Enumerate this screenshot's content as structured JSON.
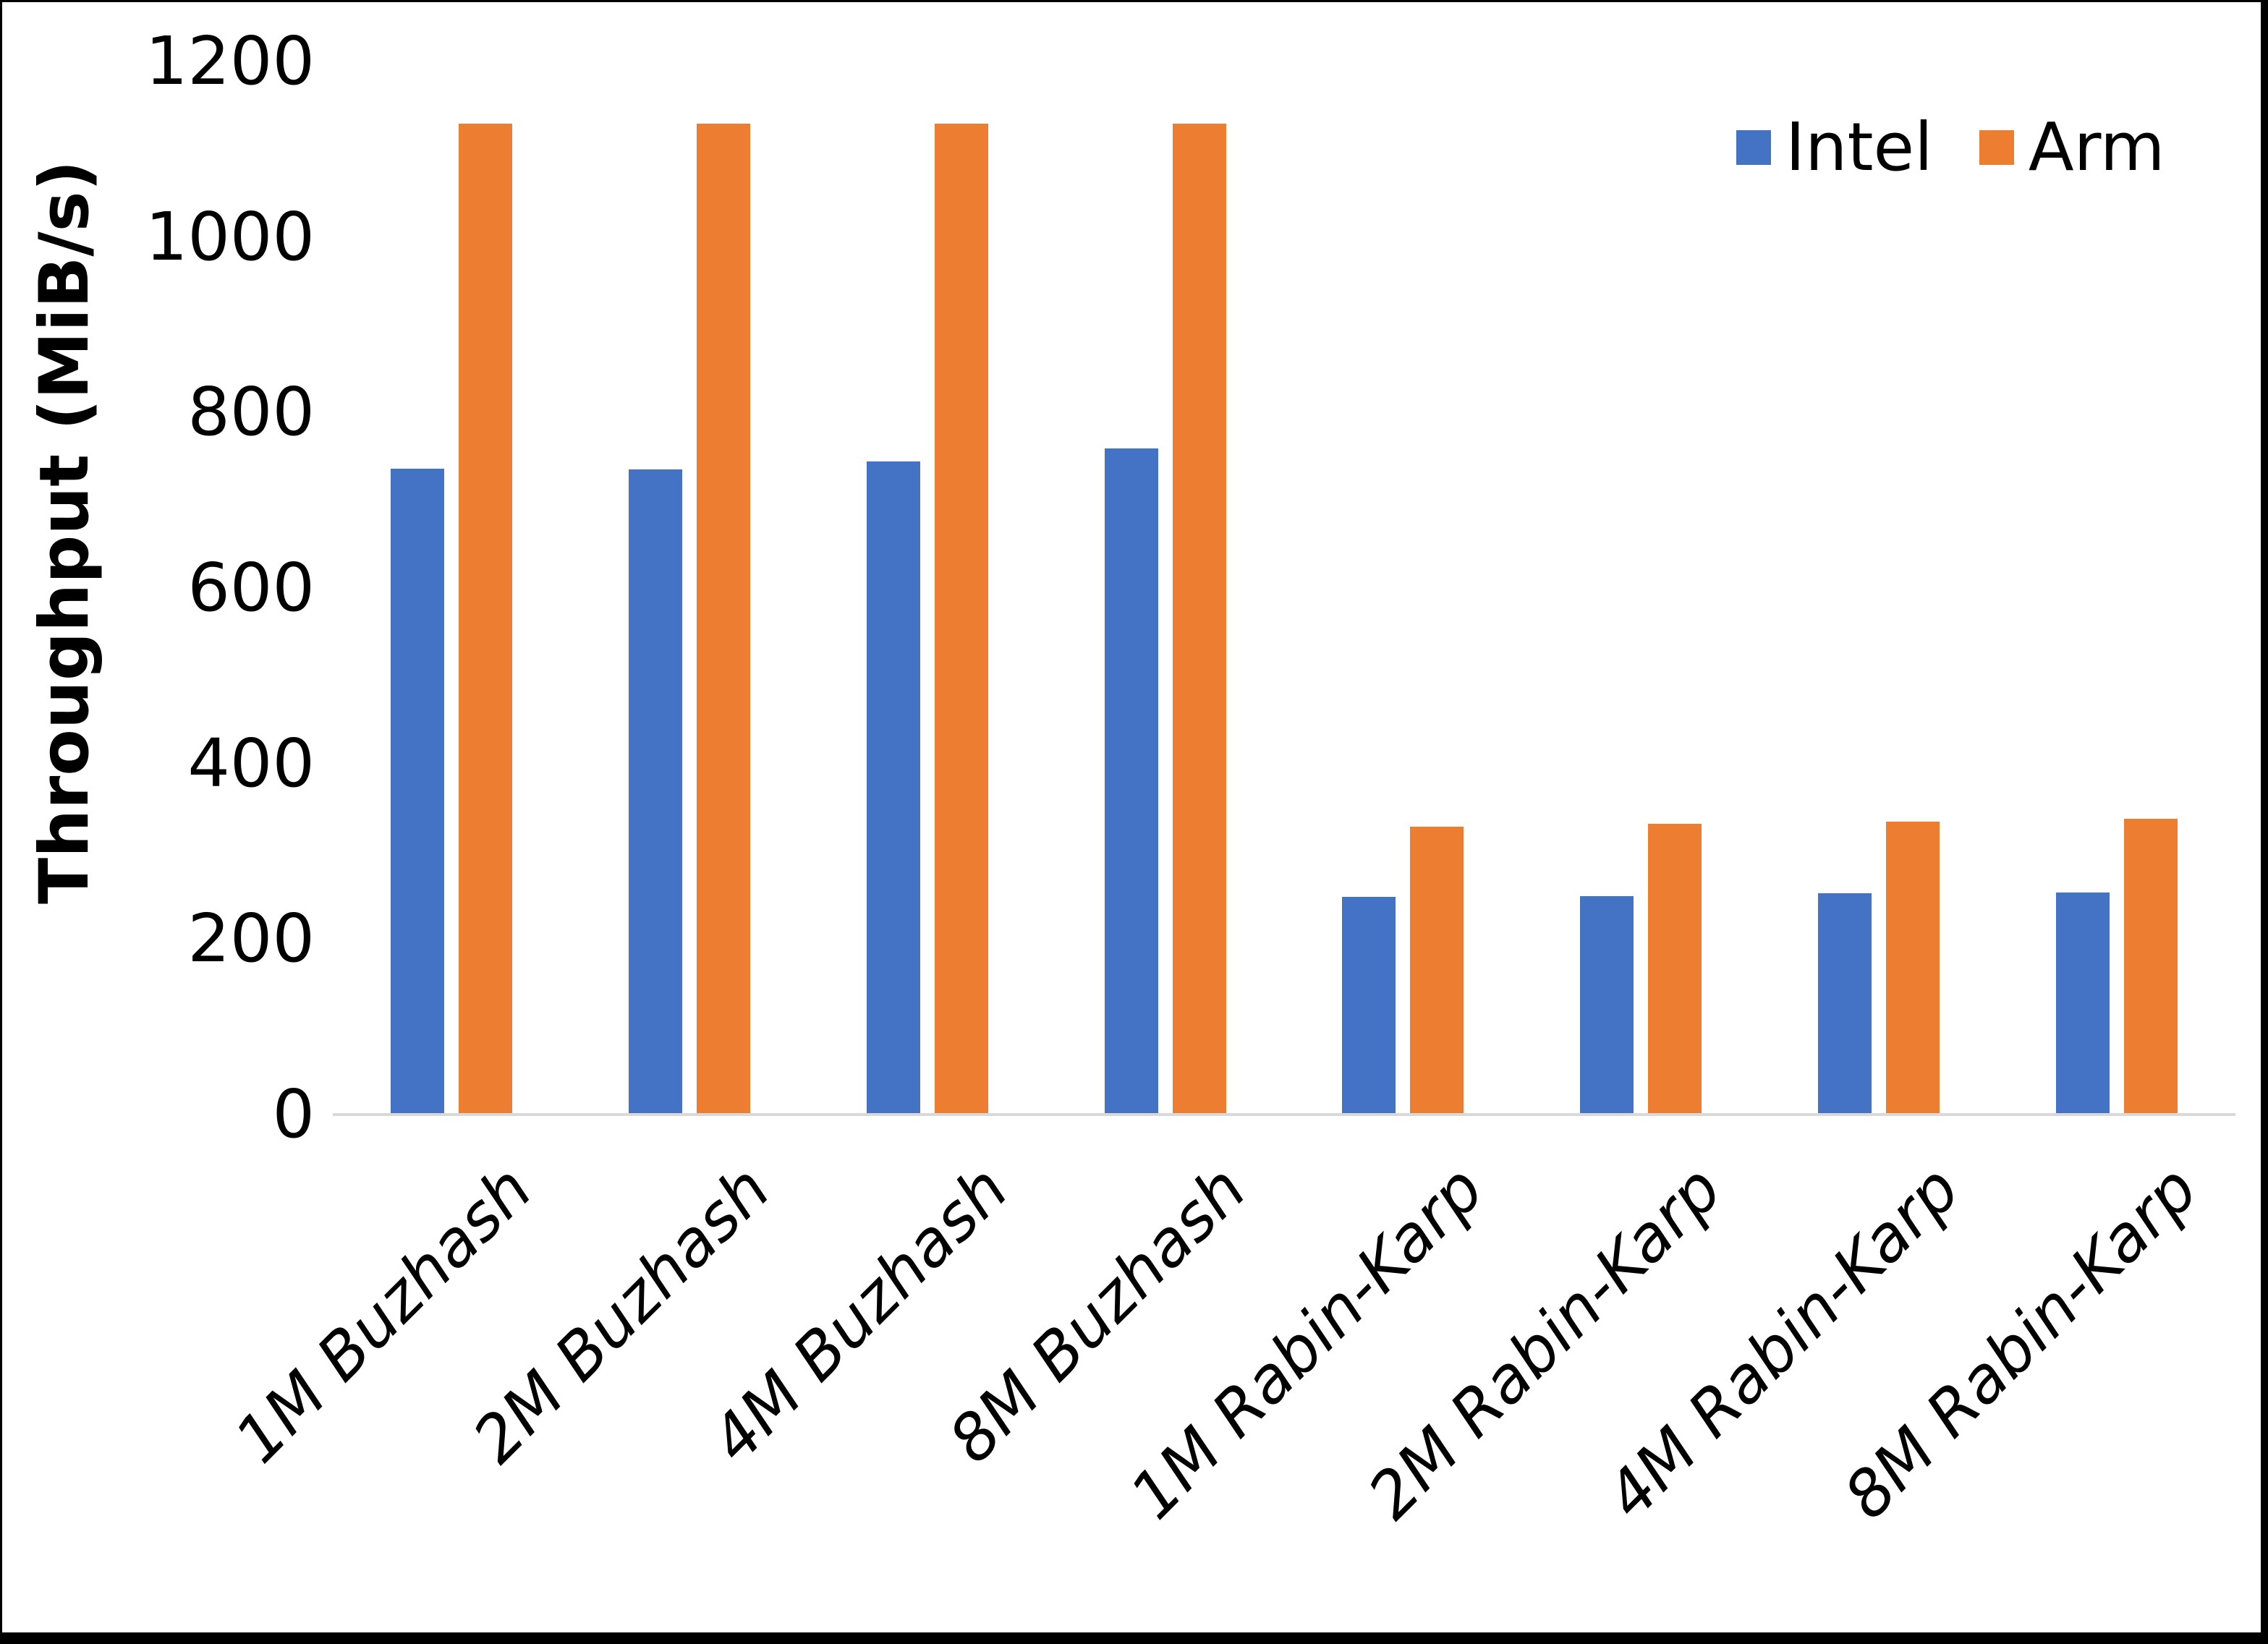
{
  "chart_data": {
    "type": "bar",
    "title": "",
    "xlabel": "",
    "ylabel": "Throughput (MiB/s)",
    "ylim": [
      0,
      1200
    ],
    "yticks": [
      0,
      200,
      400,
      600,
      800,
      1000,
      1200
    ],
    "grid": false,
    "legend_position": "top-right",
    "categories": [
      "1M Buzhash",
      "2M Buzhash",
      "4M Buzhash",
      "8M Buzhash",
      "1M Rabin-Karp",
      "2M Rabin-Karp",
      "4M Rabin-Karp",
      "8M Rabin-Karp"
    ],
    "series": [
      {
        "name": "Intel",
        "color": "#4472C4",
        "values": [
          736,
          735,
          744,
          759,
          248,
          249,
          252,
          253
        ]
      },
      {
        "name": "Arm",
        "color": "#ED7D31",
        "values": [
          1129,
          1129,
          1129,
          1129,
          328,
          331,
          334,
          337
        ]
      }
    ]
  },
  "colors": {
    "background": "#FFFFFF",
    "axis_line": "#D9D9D9",
    "text": "#000000",
    "frame": "#000000",
    "intel": "#4472C4",
    "arm": "#ED7D31"
  }
}
